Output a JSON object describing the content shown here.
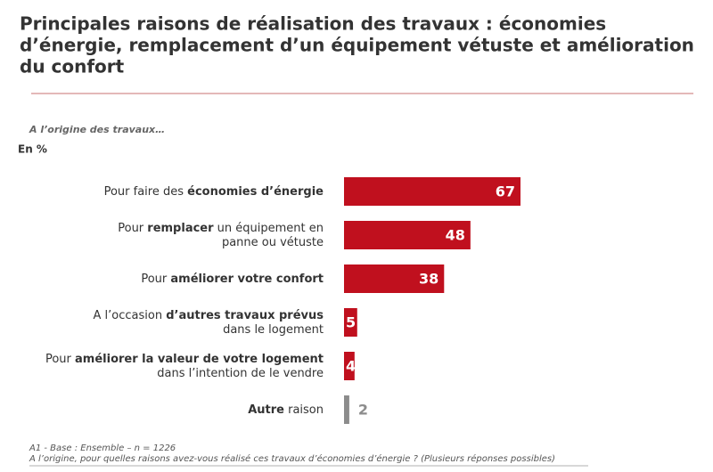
{
  "chart_data": {
    "type": "bar",
    "orientation": "horizontal",
    "title": [
      "Principales raisons de réalisation des travaux : économies",
      "d’énergie, remplacement d’un équipement vétuste et amélioration",
      "du confort"
    ],
    "subtitle": "A l’origine des travaux…",
    "unit_label": "En %",
    "categories": [
      [
        [
          {
            "text": "Pour faire des ",
            "bold": false
          },
          {
            "text": "économies d’énergie",
            "bold": true
          }
        ]
      ],
      [
        [
          {
            "text": "Pour ",
            "bold": false
          },
          {
            "text": "remplacer",
            "bold": true
          },
          {
            "text": " un équipement en",
            "bold": false
          }
        ],
        [
          {
            "text": "panne ou vétuste",
            "bold": false
          }
        ]
      ],
      [
        [
          {
            "text": "Pour ",
            "bold": false
          },
          {
            "text": "améliorer votre confort",
            "bold": true
          }
        ]
      ],
      [
        [
          {
            "text": "A l’occasion ",
            "bold": false
          },
          {
            "text": "d’autres travaux prévus",
            "bold": true
          }
        ],
        [
          {
            "text": "dans le logement",
            "bold": false
          }
        ]
      ],
      [
        [
          {
            "text": "Pour ",
            "bold": false
          },
          {
            "text": "améliorer la valeur de votre logement",
            "bold": true
          }
        ],
        [
          {
            "text": "dans l’intention de le vendre",
            "bold": false
          }
        ]
      ],
      [
        [
          {
            "text": "Autre",
            "bold": true
          },
          {
            "text": " raison",
            "bold": false
          }
        ]
      ]
    ],
    "values": [
      67,
      48,
      38,
      5,
      4,
      2
    ],
    "colors": [
      "#c0101e",
      "#c0101e",
      "#c0101e",
      "#c0101e",
      "#c0101e",
      "#8c8c8c"
    ],
    "notes": [
      "A1 - Base : Ensemble – n = 1226",
      "A l’origine, pour quelles raisons avez-vous réalisé ces travaux d’économies d’énergie ? (Plusieurs réponses possibles)"
    ]
  }
}
